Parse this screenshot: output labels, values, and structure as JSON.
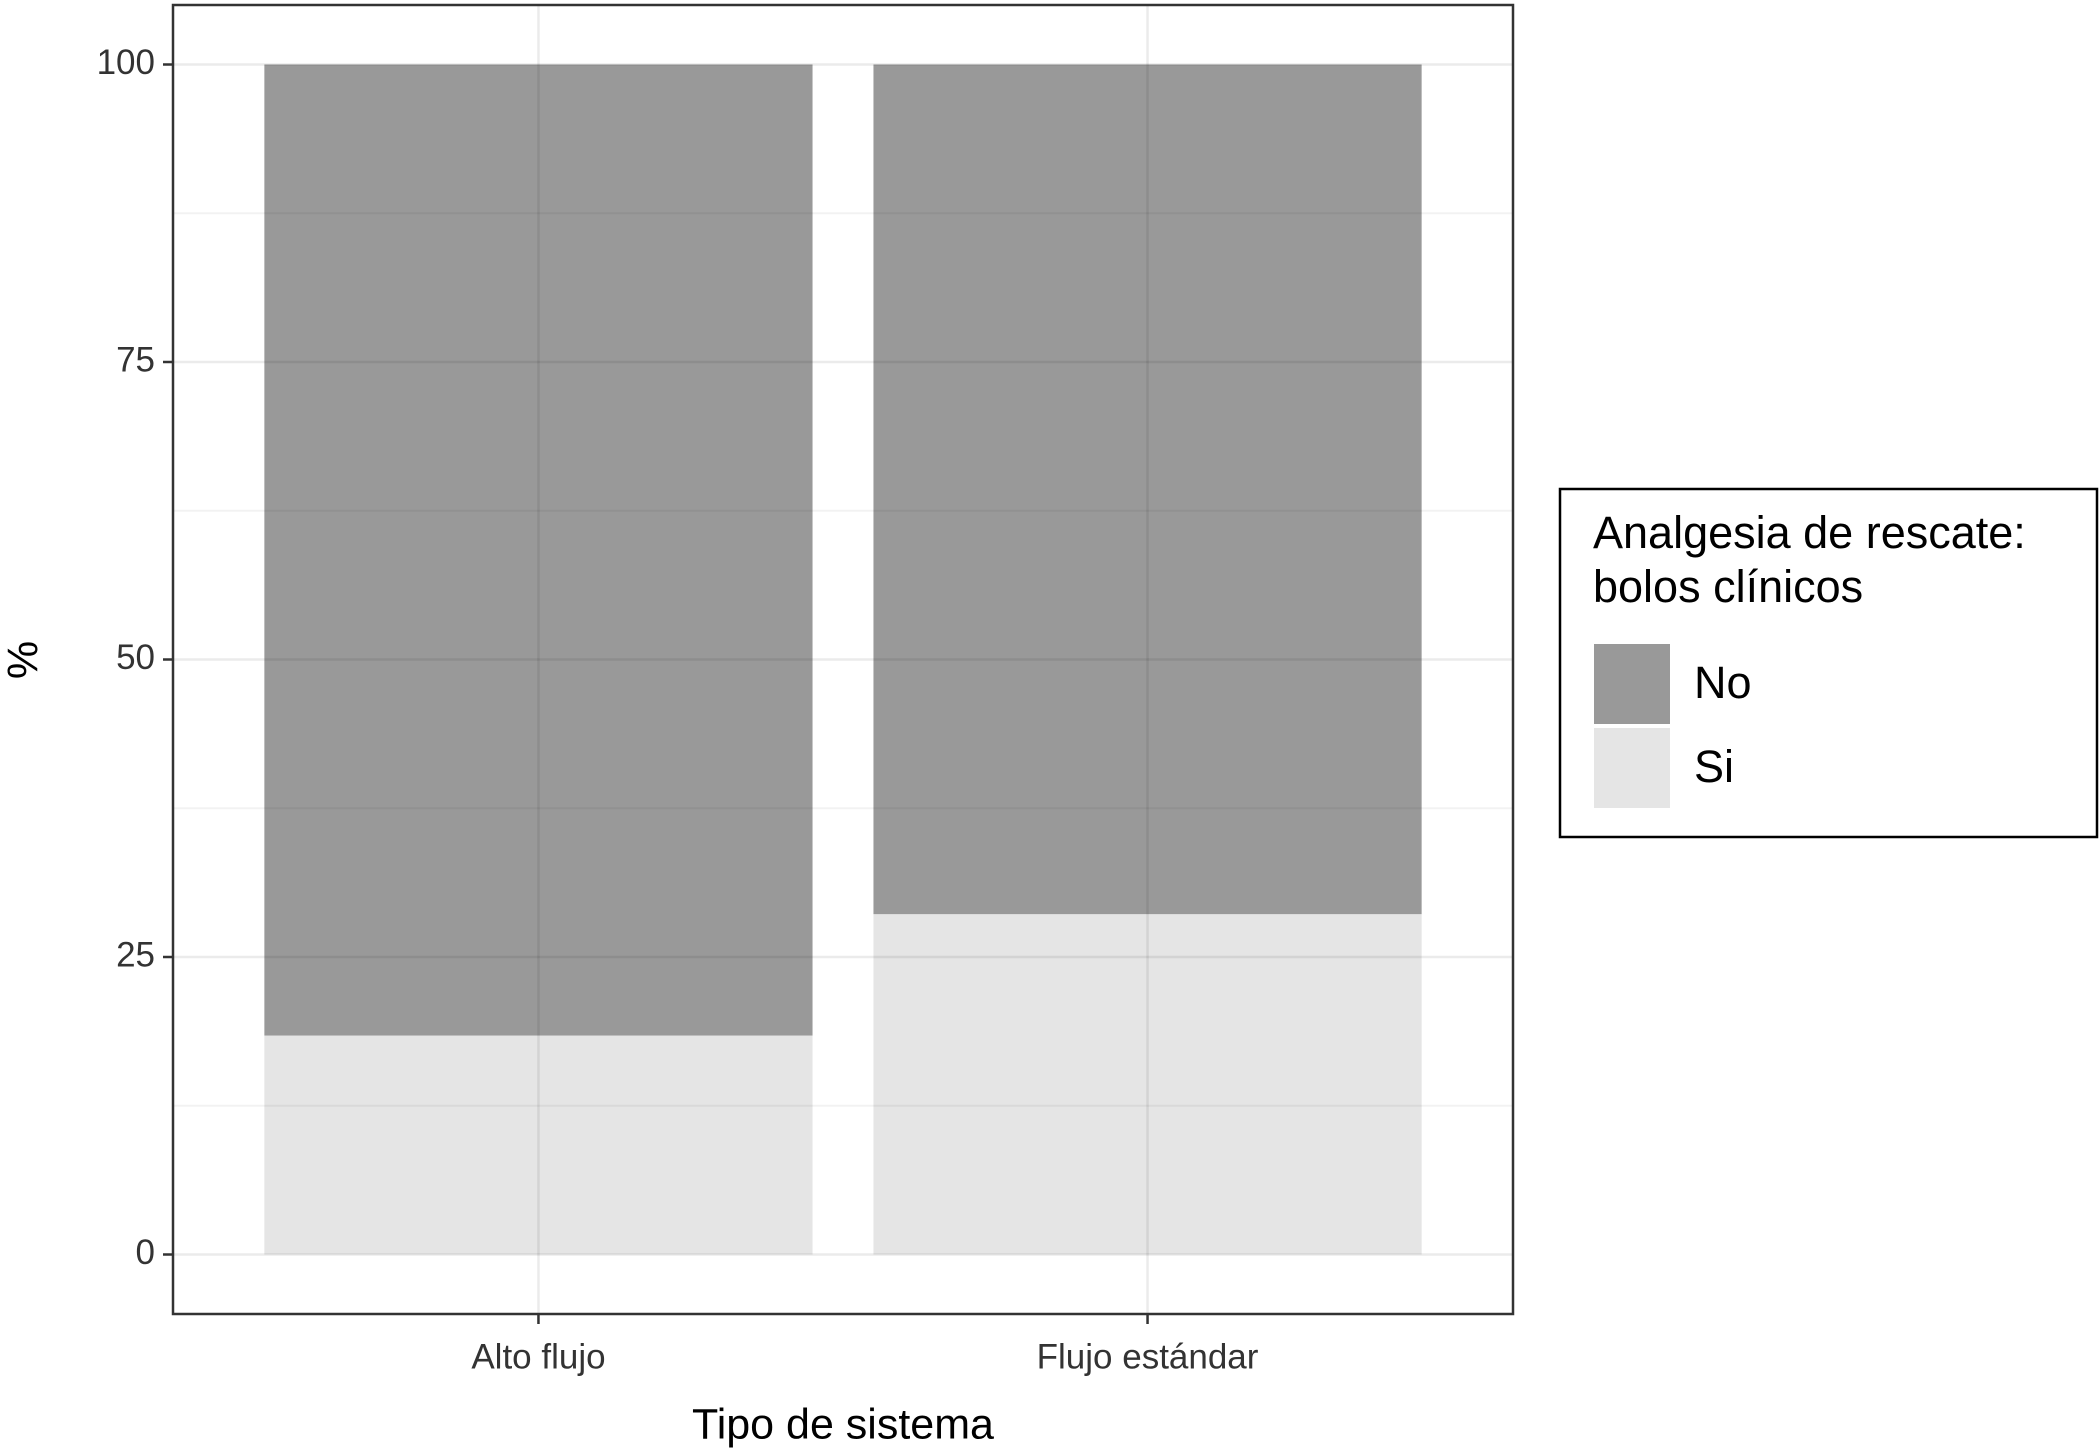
{
  "chart_data": {
    "type": "stacked_bar",
    "categories": [
      "Alto flujo",
      "Flujo estándar"
    ],
    "series": [
      {
        "name": "Si",
        "color": "#e5e5e5",
        "values": [
          18.4,
          28.6
        ]
      },
      {
        "name": "No",
        "color": "#999999",
        "values": [
          81.6,
          71.4
        ]
      }
    ],
    "legend_order": [
      1,
      0
    ],
    "legend_title": [
      "Analgesia de rescate:",
      "bolos clínicos"
    ],
    "legend_position": "right",
    "x_label": "Tipo de sistema",
    "y_label": "%",
    "ylim": [
      -5,
      105
    ],
    "yticks": [
      0,
      25,
      50,
      75,
      100
    ],
    "grid": true
  }
}
